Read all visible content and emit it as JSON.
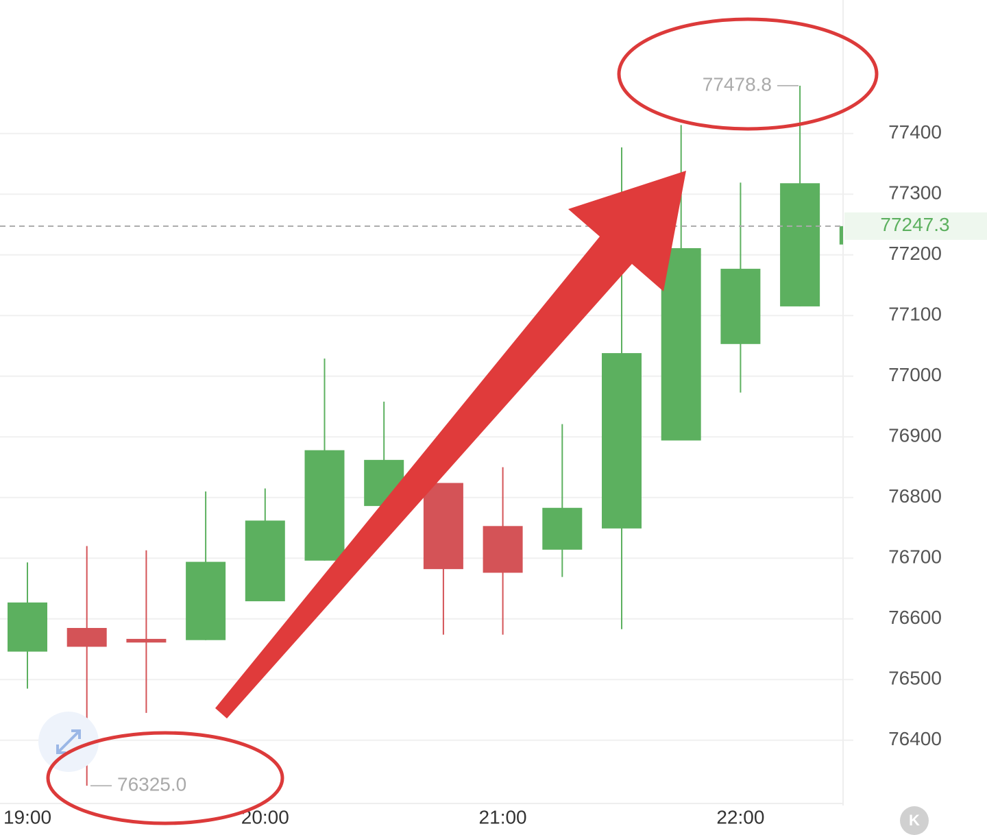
{
  "chart_data": {
    "type": "candlestick",
    "categories": [
      "19:00",
      null,
      null,
      null,
      "20:00",
      null,
      null,
      null,
      "21:00",
      null,
      null,
      null,
      "22:00",
      null,
      null
    ],
    "open": [
      76546,
      76585,
      76567,
      76565,
      76629,
      76696,
      76786,
      76824,
      76753,
      76714,
      76749,
      76894,
      77053,
      77115,
      77217
    ],
    "high": [
      76693,
      76720,
      76713,
      76810,
      76815,
      77029,
      76958,
      76824,
      76850,
      76921,
      77377,
      77414,
      77319,
      77478.8,
      77247.3
    ],
    "low": [
      76485,
      76325,
      76445,
      76565,
      76629,
      76696,
      76786,
      76574,
      76574,
      76669,
      76583,
      76894,
      76973,
      77115,
      77217
    ],
    "close": [
      76627,
      76554,
      76561,
      76694,
      76762,
      76878,
      76862,
      76682,
      76676,
      76783,
      77038,
      77211,
      77177,
      77318,
      77247.3
    ],
    "up_color": "#5cb05f",
    "down_color": "#d45357",
    "ylim": [
      76298,
      77620
    ],
    "yticks": [
      76400,
      76500,
      76600,
      76700,
      76800,
      76900,
      77000,
      77100,
      77200,
      77300,
      77400
    ],
    "grid": true,
    "last_price": 77247.3,
    "annotations": [
      {
        "value": 77478.8,
        "label": "77478.8"
      },
      {
        "value": 76325.0,
        "label": "76325.0"
      }
    ]
  }
}
